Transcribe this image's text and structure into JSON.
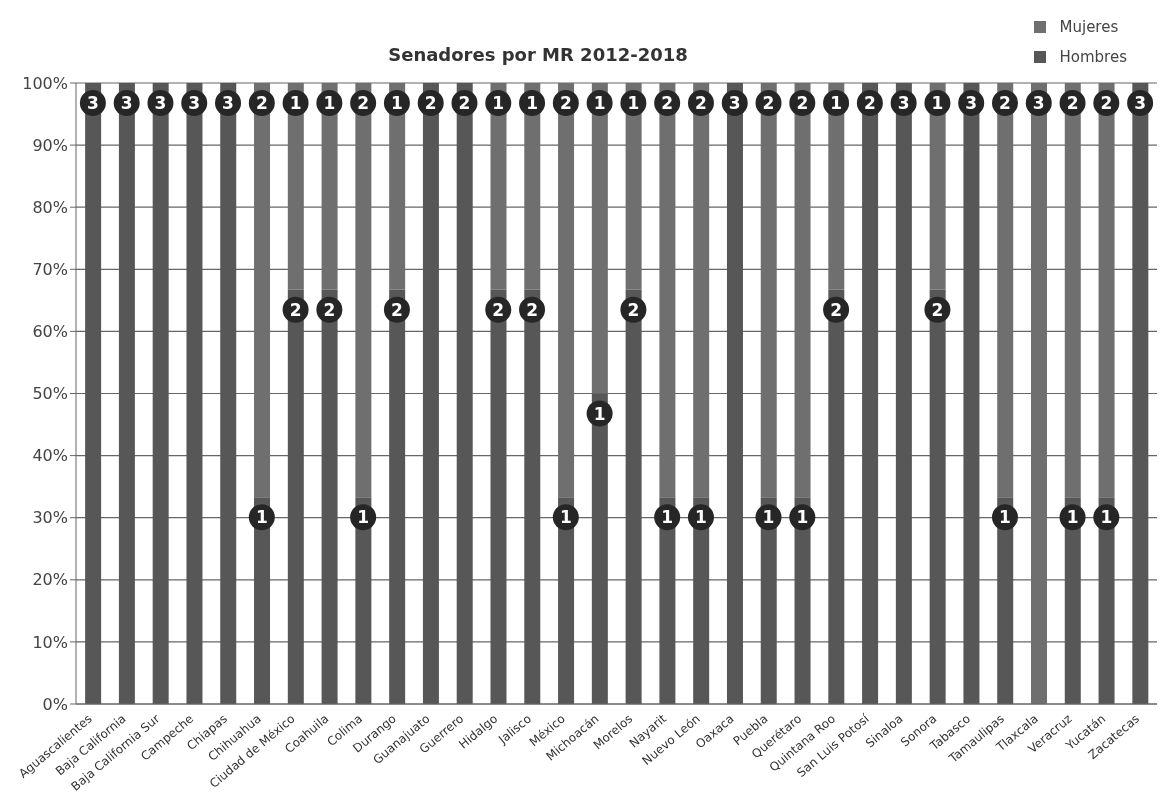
{
  "chart_data": {
    "type": "bar",
    "title": "Senadores por MR 2012-2018",
    "stacked": true,
    "categories": [
      "Aguascalientes",
      "Baja California",
      "Baja California Sur",
      "Campeche",
      "Chiapas",
      "Chihuahua",
      "Ciudad de México",
      "Coahuila",
      "Colima",
      "Durango",
      "Guanajuato",
      "Guerrero",
      "Hidalgo",
      "Jalisco",
      "México",
      "Michoacán",
      "Morelos",
      "Nayarit",
      "Nuevo León",
      "Oaxaca",
      "Puebla",
      "Querétaro",
      "Quintana Roo",
      "San Luis Potosí",
      "Sinaloa",
      "Sonora",
      "Tabasco",
      "Tamaulipas",
      "Tlaxcala",
      "Veracruz",
      "Yucatán",
      "Zacatecas"
    ],
    "series": [
      {
        "name": "Hombres",
        "color": "#575757",
        "values": [
          100,
          100,
          100,
          100,
          100,
          33.3,
          66.7,
          66.7,
          33.3,
          66.7,
          100,
          100,
          66.7,
          66.7,
          33.3,
          50,
          66.7,
          33.3,
          33.3,
          100,
          33.3,
          33.3,
          66.7,
          100,
          100,
          66.7,
          100,
          33.3,
          0,
          33.3,
          33.3,
          100
        ]
      },
      {
        "name": "Mujeres",
        "color": "#6f6f6f",
        "values": [
          0,
          0,
          0,
          0,
          0,
          66.7,
          33.3,
          33.3,
          66.7,
          33.3,
          0,
          0,
          33.3,
          33.3,
          66.7,
          50,
          33.3,
          66.7,
          66.7,
          0,
          66.7,
          66.7,
          33.3,
          0,
          0,
          33.3,
          0,
          66.7,
          100,
          66.7,
          66.7,
          0
        ]
      }
    ],
    "annotations": [
      {
        "text": "3",
        "x": "Aguascalientes",
        "y": 100
      },
      {
        "text": "3",
        "x": "Baja California",
        "y": 100
      },
      {
        "text": "3",
        "x": "Baja California Sur",
        "y": 100
      },
      {
        "text": "3",
        "x": "Campeche",
        "y": 100
      },
      {
        "text": "3",
        "x": "Chiapas",
        "y": 100
      },
      {
        "text": "1",
        "x": "Chihuahua",
        "y": 33.3
      },
      {
        "text": "2",
        "x": "Chihuahua",
        "y": 100
      },
      {
        "text": "2",
        "x": "Ciudad de México",
        "y": 66.7
      },
      {
        "text": "1",
        "x": "Ciudad de México",
        "y": 100
      },
      {
        "text": "2",
        "x": "Coahuila",
        "y": 66.7
      },
      {
        "text": "1",
        "x": "Coahuila",
        "y": 100
      },
      {
        "text": "1",
        "x": "Colima",
        "y": 33.3
      },
      {
        "text": "2",
        "x": "Colima",
        "y": 100
      },
      {
        "text": "2",
        "x": "Durango",
        "y": 66.7
      },
      {
        "text": "1",
        "x": "Durango",
        "y": 100
      },
      {
        "text": "2",
        "x": "Guanajuato",
        "y": 100
      },
      {
        "text": "2",
        "x": "Guerrero",
        "y": 100
      },
      {
        "text": "2",
        "x": "Hidalgo",
        "y": 66.7
      },
      {
        "text": "1",
        "x": "Hidalgo",
        "y": 100
      },
      {
        "text": "2",
        "x": "Jalisco",
        "y": 66.7
      },
      {
        "text": "1",
        "x": "Jalisco",
        "y": 100
      },
      {
        "text": "1",
        "x": "México",
        "y": 33.3
      },
      {
        "text": "2",
        "x": "México",
        "y": 100
      },
      {
        "text": "1",
        "x": "Michoacán",
        "y": 50
      },
      {
        "text": "1",
        "x": "Michoacán",
        "y": 100
      },
      {
        "text": "2",
        "x": "Morelos",
        "y": 66.7
      },
      {
        "text": "1",
        "x": "Morelos",
        "y": 100
      },
      {
        "text": "1",
        "x": "Nayarit",
        "y": 33.3
      },
      {
        "text": "2",
        "x": "Nayarit",
        "y": 100
      },
      {
        "text": "1",
        "x": "Nuevo León",
        "y": 33.3
      },
      {
        "text": "2",
        "x": "Nuevo León",
        "y": 100
      },
      {
        "text": "3",
        "x": "Oaxaca",
        "y": 100
      },
      {
        "text": "1",
        "x": "Puebla",
        "y": 33.3
      },
      {
        "text": "2",
        "x": "Puebla",
        "y": 100
      },
      {
        "text": "1",
        "x": "Querétaro",
        "y": 33.3
      },
      {
        "text": "2",
        "x": "Querétaro",
        "y": 100
      },
      {
        "text": "2",
        "x": "Quintana Roo",
        "y": 66.7
      },
      {
        "text": "1",
        "x": "Quintana Roo",
        "y": 100
      },
      {
        "text": "2",
        "x": "San Luis Potosí",
        "y": 100
      },
      {
        "text": "3",
        "x": "Sinaloa",
        "y": 100
      },
      {
        "text": "2",
        "x": "Sonora",
        "y": 66.7
      },
      {
        "text": "1",
        "x": "Sonora",
        "y": 100
      },
      {
        "text": "3",
        "x": "Tabasco",
        "y": 100
      },
      {
        "text": "1",
        "x": "Tamaulipas",
        "y": 33.3
      },
      {
        "text": "2",
        "x": "Tamaulipas",
        "y": 100
      },
      {
        "text": "3",
        "x": "Tlaxcala",
        "y": 100
      },
      {
        "text": "1",
        "x": "Veracruz",
        "y": 33.3
      },
      {
        "text": "2",
        "x": "Veracruz",
        "y": 100
      },
      {
        "text": "1",
        "x": "Yucatán",
        "y": 33.3
      },
      {
        "text": "2",
        "x": "Yucatán",
        "y": 100
      },
      {
        "text": "3",
        "x": "Zacatecas",
        "y": 100
      }
    ],
    "ylim": [
      0,
      100
    ],
    "yticks": [
      {
        "value": 0,
        "label": "0%"
      },
      {
        "value": 10,
        "label": "10%"
      },
      {
        "value": 20,
        "label": "20%"
      },
      {
        "value": 30,
        "label": "30%"
      },
      {
        "value": 40,
        "label": "40%"
      },
      {
        "value": 50,
        "label": "50%"
      },
      {
        "value": 60,
        "label": "60%"
      },
      {
        "value": 70,
        "label": "70%"
      },
      {
        "value": 80,
        "label": "80%"
      },
      {
        "value": 90,
        "label": "90%"
      },
      {
        "value": 100,
        "label": "100%"
      }
    ],
    "grid": "y",
    "legend": "top right"
  }
}
